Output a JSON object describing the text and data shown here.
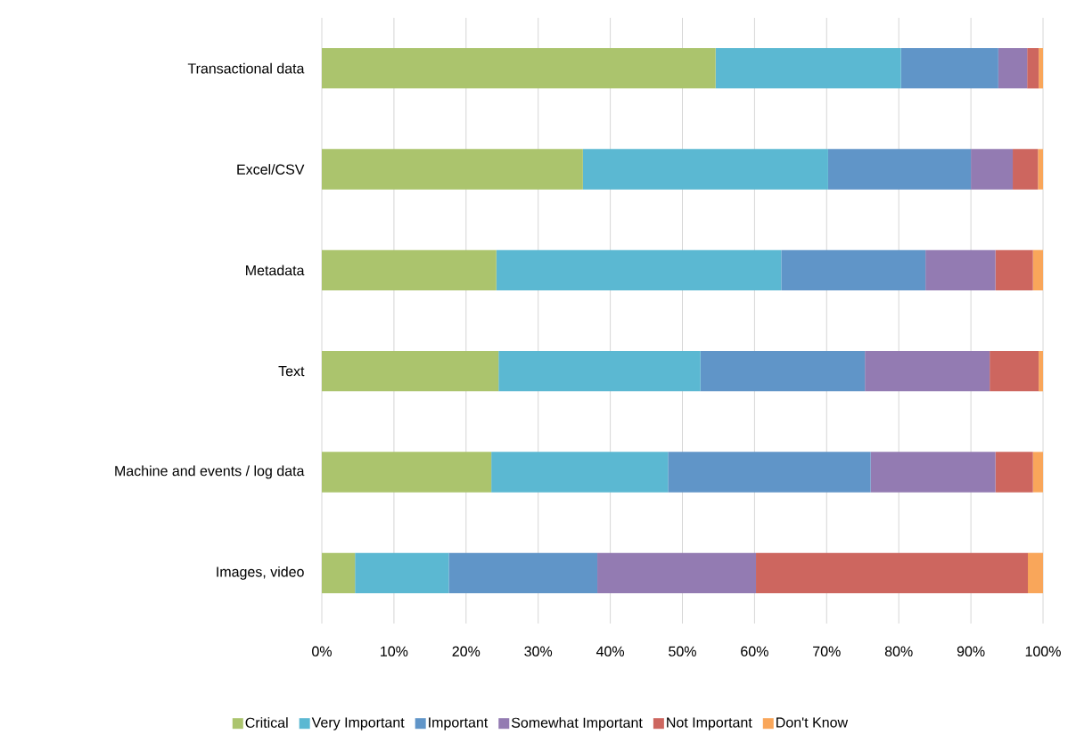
{
  "chart_data": {
    "type": "bar",
    "orientation": "horizontal",
    "stacked": true,
    "grid": "x",
    "legend": "bottom",
    "categories": [
      "Transactional data",
      "Excel/CSV",
      "Metadata",
      "Text",
      "Machine and events / log data",
      "Images, video"
    ],
    "xlim": [
      0,
      100
    ],
    "xticks": [
      {
        "value": 0,
        "label": "0%"
      },
      {
        "value": 10,
        "label": "10%"
      },
      {
        "value": 20,
        "label": "20%"
      },
      {
        "value": 30,
        "label": "30%"
      },
      {
        "value": 40,
        "label": "40%"
      },
      {
        "value": 50,
        "label": "50%"
      },
      {
        "value": 60,
        "label": "60%"
      },
      {
        "value": 70,
        "label": "70%"
      },
      {
        "value": 80,
        "label": "80%"
      },
      {
        "value": 90,
        "label": "90%"
      },
      {
        "value": 100,
        "label": "100%"
      }
    ],
    "series": [
      {
        "name": "Critical",
        "color": "#abc46d",
        "values": [
          54.6,
          36.2,
          24.2,
          24.5,
          23.5,
          4.6
        ]
      },
      {
        "name": "Very Important",
        "color": "#5bb8d2",
        "values": [
          25.7,
          34.0,
          39.5,
          28.0,
          24.5,
          13.0
        ]
      },
      {
        "name": "Important",
        "color": "#6095c8",
        "values": [
          13.5,
          19.8,
          20.0,
          22.8,
          28.1,
          20.6
        ]
      },
      {
        "name": "Somewhat Important",
        "color": "#937bb2",
        "values": [
          4.0,
          5.8,
          9.7,
          17.3,
          17.3,
          22.0
        ]
      },
      {
        "name": "Not Important",
        "color": "#cd665f",
        "values": [
          1.6,
          3.5,
          5.2,
          6.8,
          5.2,
          37.7
        ]
      },
      {
        "name": "Don't Know",
        "color": "#f9a65a",
        "values": [
          0.6,
          0.7,
          1.4,
          0.6,
          1.4,
          2.1
        ]
      }
    ]
  }
}
